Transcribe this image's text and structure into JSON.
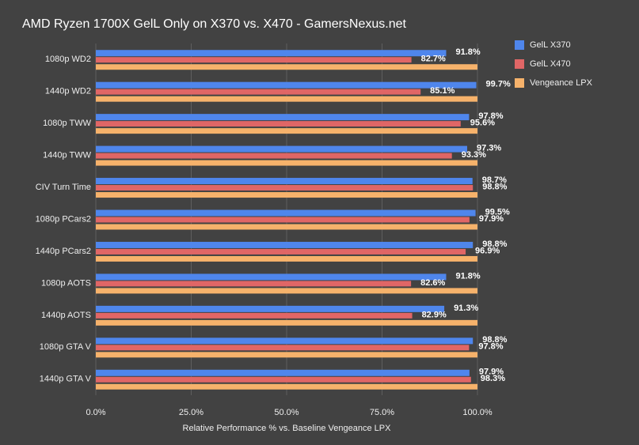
{
  "chart_data": {
    "type": "hbar",
    "title": "AMD Ryzen 1700X GelL Only on X370 vs. X470 - GamersNexus.net",
    "x_label": "Relative Performance % vs. Baseline Vengeance LPX",
    "categories": [
      "1080p WD2",
      "1440p WD2",
      "1080p TWW",
      "1440p TWW",
      "CIV Turn Time",
      "1080p PCars2",
      "1440p PCars2",
      "1080p AOTS",
      "1440p AOTS",
      "1080p GTA V",
      "1440p GTA V"
    ],
    "series": [
      {
        "name": "GelL X370",
        "color": "#4f86ec",
        "values": [
          91.8,
          99.7,
          97.8,
          97.3,
          98.7,
          99.5,
          98.8,
          91.8,
          91.3,
          98.8,
          97.9
        ],
        "value_labels": [
          "91.8%",
          "99.7%",
          "97.8%",
          "97.3%",
          "98.7%",
          "99.5%",
          "98.8%",
          "91.8%",
          "91.3%",
          "98.8%",
          "97.9%"
        ]
      },
      {
        "name": "GelL X470",
        "color": "#e06666",
        "values": [
          82.7,
          85.1,
          95.6,
          93.3,
          98.8,
          97.9,
          96.9,
          82.6,
          82.9,
          97.8,
          98.3
        ],
        "value_labels": [
          "82.7%",
          "85.1%",
          "95.6%",
          "93.3%",
          "98.8%",
          "97.9%",
          "96.9%",
          "82.6%",
          "82.9%",
          "97.8%",
          "98.3%"
        ]
      },
      {
        "name": "Vengeance LPX",
        "color": "#f6b26b",
        "values": [
          100,
          100,
          100,
          100,
          100,
          100,
          100,
          100,
          100,
          100,
          100
        ]
      }
    ],
    "xlim": [
      0,
      100
    ],
    "xticks": [
      {
        "value": 0,
        "label": "0.0%"
      },
      {
        "value": 25,
        "label": "25.0%"
      },
      {
        "value": 50,
        "label": "50.0%"
      },
      {
        "value": 75,
        "label": "75.0%"
      },
      {
        "value": 100,
        "label": "100.0%"
      }
    ],
    "grid": true,
    "legend": "top-right"
  }
}
